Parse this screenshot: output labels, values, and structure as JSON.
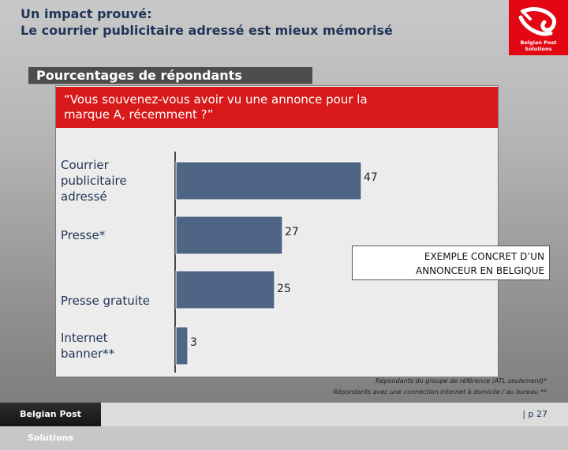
{
  "slide": {
    "title_line1": "Un impact prouvé:",
    "title_line2": "Le courrier publicitaire adressé est mieux mémorisé",
    "subtitle": "Pourcentages de répondants",
    "question_line1": "“Vous souvenez-vous avoir vu une annonce pour la",
    "question_line2": "marque A, récemment ?”",
    "callout_line1": "EXEMPLE CONCRET D’UN",
    "callout_line2": "ANNONCEUR EN BELGIQUE",
    "footnote1": "Répondants du groupe de référence (ATL seulement)*",
    "footnote2": "Répondants avec une connection internet à domicile / au bureau **",
    "logo_text": "Belgian Post Solutions",
    "footer_brand": "Belgian Post Solutions",
    "page_number": "| p 27"
  },
  "colors": {
    "bar": "#4f6585",
    "accent_red": "#d8191a",
    "title_blue": "#1f3557"
  },
  "chart_data": {
    "type": "bar",
    "orientation": "horizontal",
    "title": "Pourcentages de répondants",
    "categories": [
      [
        "Courrier",
        "publicitaire",
        "adressé"
      ],
      [
        "Presse*"
      ],
      [
        "Presse gratuite"
      ],
      [
        "Internet",
        "banner**"
      ]
    ],
    "values": [
      47,
      27,
      25,
      3
    ],
    "xlim": [
      0,
      50
    ],
    "grid": false,
    "legend": "none"
  }
}
